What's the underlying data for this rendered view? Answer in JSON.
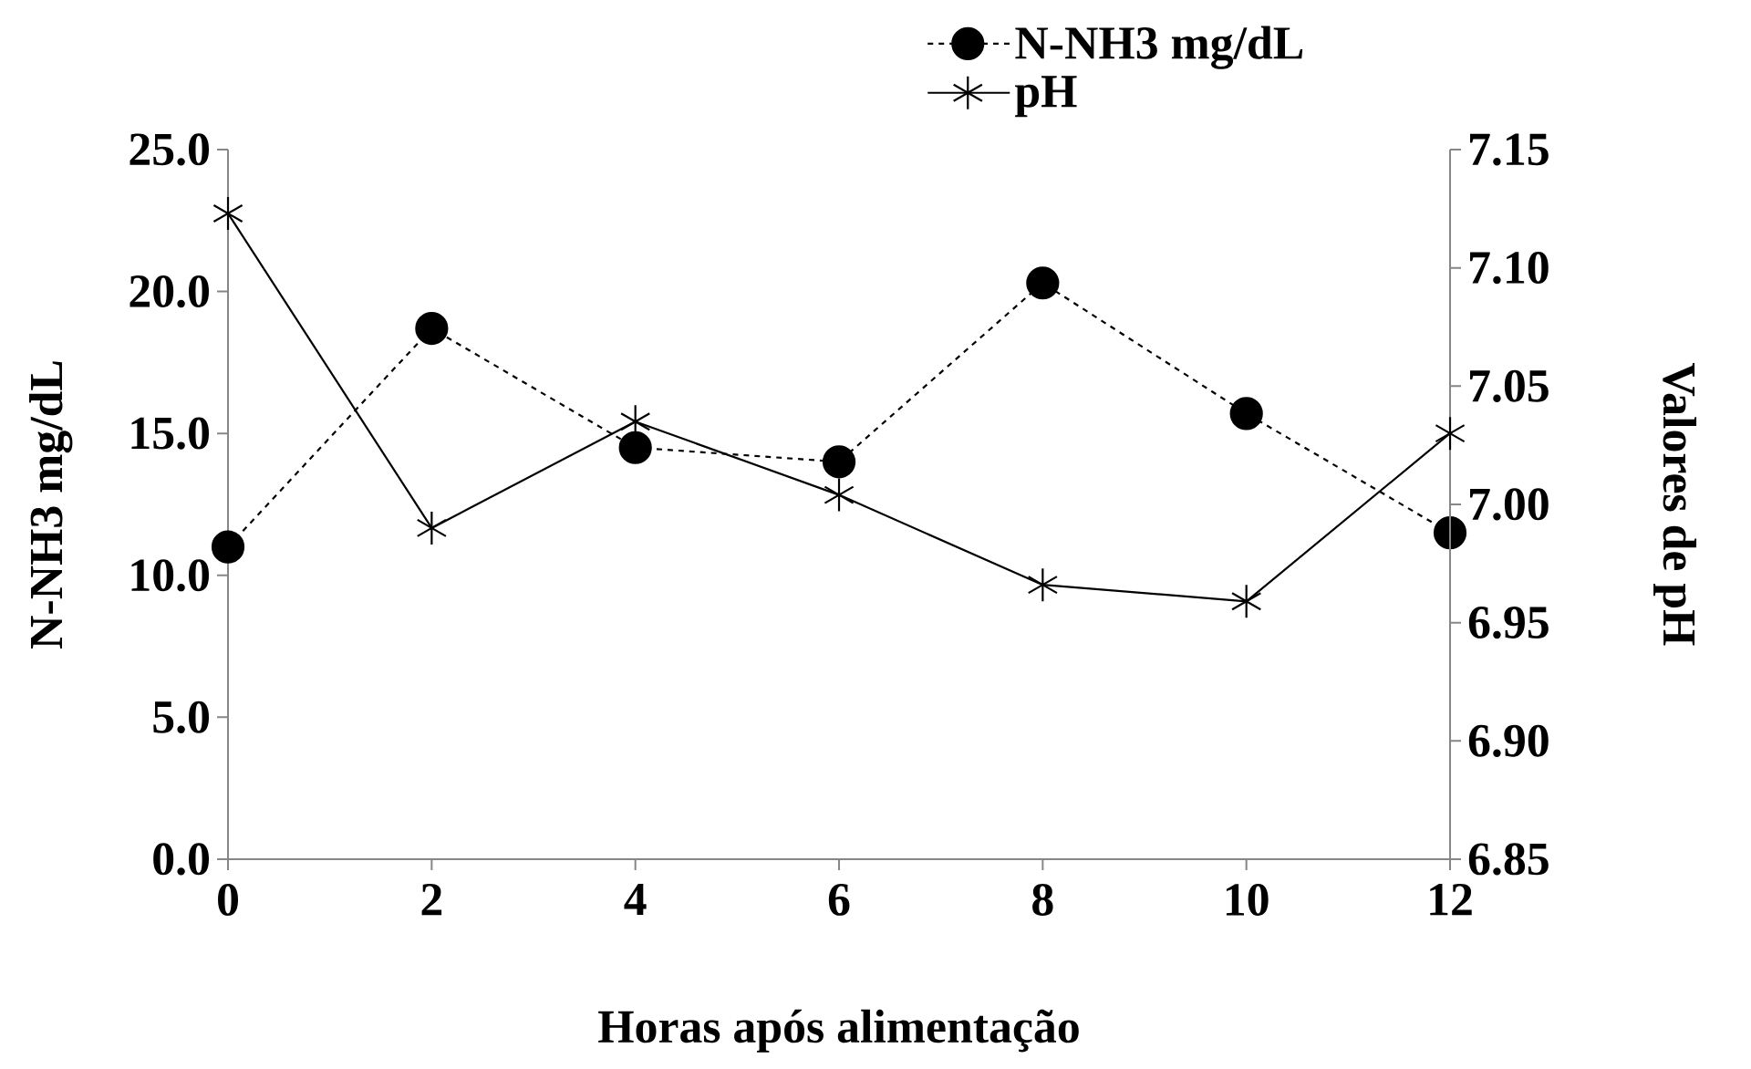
{
  "chart_data": {
    "type": "line",
    "xlabel": "Horas após alimentação",
    "ylabel": "N-NH3 mg/dL",
    "y2label": "Valores de pH",
    "x": [
      0,
      2,
      4,
      6,
      8,
      10,
      12
    ],
    "xlim": [
      0,
      12
    ],
    "xticks": [
      0,
      2,
      4,
      6,
      8,
      10,
      12
    ],
    "ylim": [
      0,
      25
    ],
    "yticks": [
      {
        "value": 0,
        "label": "0.0"
      },
      {
        "value": 5,
        "label": "5.0"
      },
      {
        "value": 10,
        "label": "10.0"
      },
      {
        "value": 15,
        "label": "15.0"
      },
      {
        "value": 20,
        "label": "20.0"
      },
      {
        "value": 25,
        "label": "25.0"
      }
    ],
    "y2lim": [
      6.85,
      7.15
    ],
    "y2ticks": [
      {
        "value": 6.85,
        "label": "6.85"
      },
      {
        "value": 6.9,
        "label": "6.90"
      },
      {
        "value": 6.95,
        "label": "6.95"
      },
      {
        "value": 7.0,
        "label": "7.00"
      },
      {
        "value": 7.05,
        "label": "7.05"
      },
      {
        "value": 7.1,
        "label": "7.10"
      },
      {
        "value": 7.15,
        "label": "7.15"
      }
    ],
    "grid": false,
    "legend": "top",
    "series": [
      {
        "name": "N-NH3 mg/dL",
        "color": "#000000",
        "marker": "circle",
        "line_style": "dashed",
        "values": [
          11.0,
          18.7,
          14.5,
          14.0,
          20.3,
          15.7,
          11.5
        ]
      },
      {
        "name": "pH",
        "color": "#000000",
        "marker": "cross",
        "line_style": "solid",
        "axis": "y2",
        "values": [
          7.123,
          6.99,
          7.035,
          7.004,
          6.966,
          6.959,
          7.03
        ]
      }
    ]
  }
}
